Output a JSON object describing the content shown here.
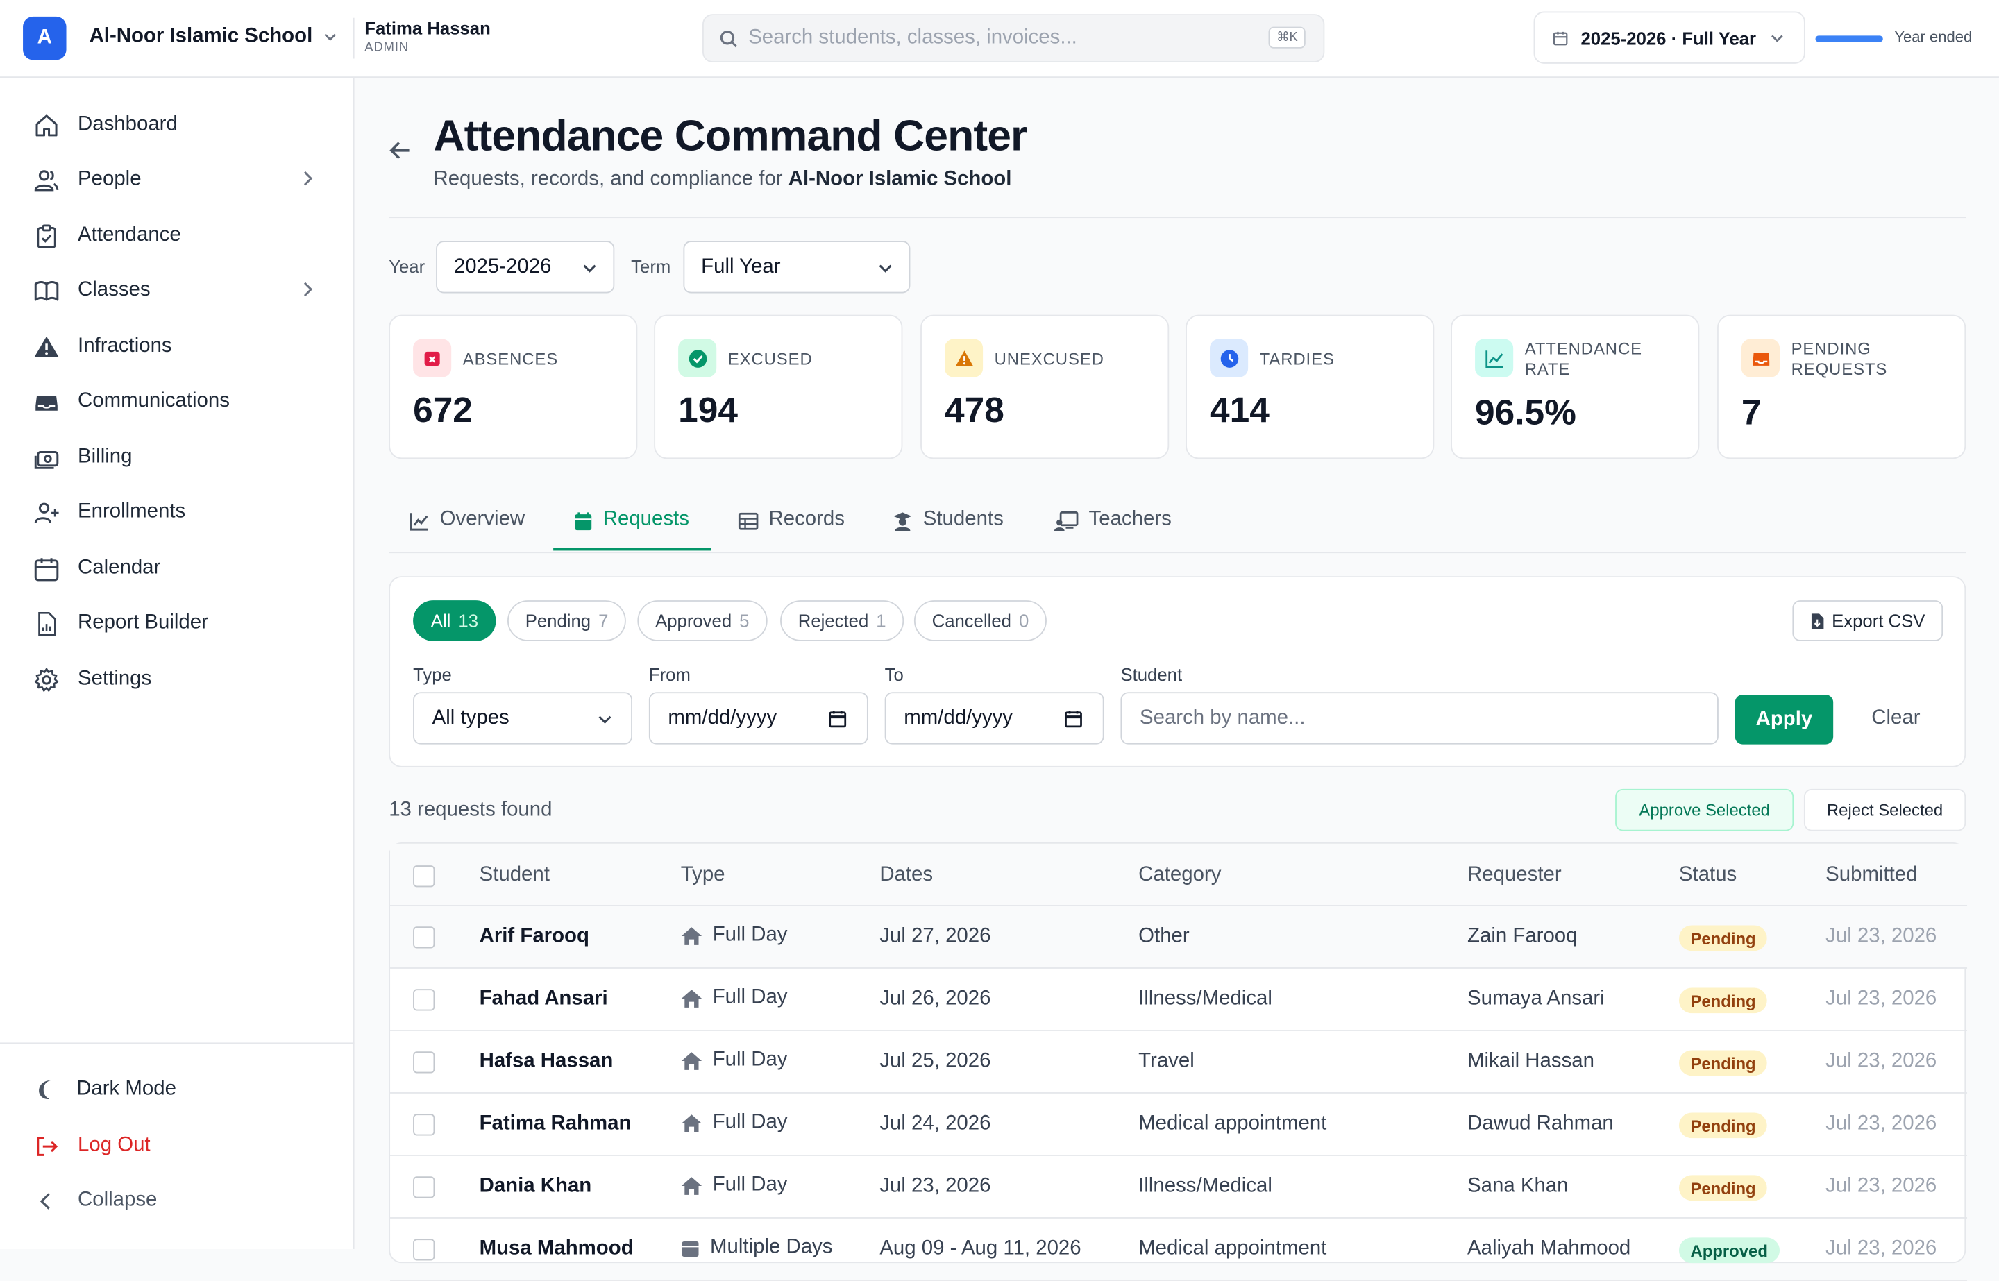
{
  "app": {
    "logo_letter": "A",
    "school_name": "Al-Noor Islamic School",
    "user_name": "Fatima Hassan",
    "user_role": "ADMIN",
    "search_placeholder": "Search students, classes, invoices...",
    "search_shortcut": "⌘K",
    "year_selector": "2025-2026 · Full Year",
    "year_status": "Year ended",
    "year_progress": 1.0
  },
  "sidebar": {
    "items": [
      {
        "label": "Dashboard",
        "icon": "home-icon"
      },
      {
        "label": "People",
        "icon": "users-icon",
        "has_children": true
      },
      {
        "label": "Attendance",
        "icon": "clipboard-check-icon"
      },
      {
        "label": "Classes",
        "icon": "book-icon",
        "has_children": true
      },
      {
        "label": "Infractions",
        "icon": "warning-icon"
      },
      {
        "label": "Communications",
        "icon": "inbox-icon"
      },
      {
        "label": "Billing",
        "icon": "cash-icon"
      },
      {
        "label": "Enrollments",
        "icon": "user-plus-icon"
      },
      {
        "label": "Calendar",
        "icon": "calendar-icon"
      },
      {
        "label": "Report Builder",
        "icon": "report-icon"
      },
      {
        "label": "Settings",
        "icon": "gear-icon"
      }
    ],
    "footer": {
      "dark_mode": "Dark Mode",
      "logout": "Log Out",
      "collapse": "Collapse"
    }
  },
  "page": {
    "title": "Attendance Command Center",
    "subtitle_prefix": "Requests, records, and compliance for ",
    "subtitle_school": "Al-Noor Islamic School",
    "year_label": "Year",
    "year_value": "2025-2026",
    "term_label": "Term",
    "term_value": "Full Year"
  },
  "stats": [
    {
      "label": "ABSENCES",
      "value": "672",
      "color": "#e11d48",
      "bg": "#ffe4e6",
      "icon": "calendar-x-icon"
    },
    {
      "label": "EXCUSED",
      "value": "194",
      "color": "#059669",
      "bg": "#d1fae5",
      "icon": "check-circle-icon"
    },
    {
      "label": "UNEXCUSED",
      "value": "478",
      "color": "#d97706",
      "bg": "#fef3c7",
      "icon": "warning-icon"
    },
    {
      "label": "TARDIES",
      "value": "414",
      "color": "#2563eb",
      "bg": "#dbeafe",
      "icon": "clock-icon"
    },
    {
      "label_line1": "ATTENDANCE",
      "label_line2": "RATE",
      "value": "96.5%",
      "color": "#0d9488",
      "bg": "#ccfbf1",
      "icon": "chart-line-icon"
    },
    {
      "label_line1": "PENDING",
      "label_line2": "REQUESTS",
      "value": "7",
      "color": "#ea580c",
      "bg": "#ffedd5",
      "icon": "inbox-icon"
    }
  ],
  "tabs": [
    {
      "label": "Overview",
      "icon": "chart-line-icon"
    },
    {
      "label": "Requests",
      "icon": "calendar-icon",
      "active": true
    },
    {
      "label": "Records",
      "icon": "table-icon"
    },
    {
      "label": "Students",
      "icon": "graduate-icon"
    },
    {
      "label": "Teachers",
      "icon": "teacher-icon"
    }
  ],
  "filters": {
    "status_pills": [
      {
        "label": "All",
        "count": "13",
        "active": true
      },
      {
        "label": "Pending",
        "count": "7"
      },
      {
        "label": "Approved",
        "count": "5"
      },
      {
        "label": "Rejected",
        "count": "1"
      },
      {
        "label": "Cancelled",
        "count": "0"
      }
    ],
    "export_label": "Export CSV",
    "type_label": "Type",
    "type_value": "All types",
    "from_label": "From",
    "from_placeholder": "mm/dd/yyyy",
    "to_label": "To",
    "to_placeholder": "mm/dd/yyyy",
    "student_label": "Student",
    "student_placeholder": "Search by name...",
    "apply_label": "Apply",
    "clear_label": "Clear"
  },
  "results": {
    "found_text": "13 requests found",
    "approve_selected": "Approve Selected",
    "reject_selected": "Reject Selected"
  },
  "table": {
    "columns": [
      "Student",
      "Type",
      "Dates",
      "Category",
      "Requester",
      "Status",
      "Submitted"
    ],
    "rows": [
      {
        "student": "Arif Farooq",
        "type": "Full Day",
        "dates": "Jul 27, 2026",
        "category": "Other",
        "requester": "Zain Farooq",
        "status": "Pending",
        "submitted": "Jul 23, 2026"
      },
      {
        "student": "Fahad Ansari",
        "type": "Full Day",
        "dates": "Jul 26, 2026",
        "category": "Illness/Medical",
        "requester": "Sumaya Ansari",
        "status": "Pending",
        "submitted": "Jul 23, 2026"
      },
      {
        "student": "Hafsa Hassan",
        "type": "Full Day",
        "dates": "Jul 25, 2026",
        "category": "Travel",
        "requester": "Mikail Hassan",
        "status": "Pending",
        "submitted": "Jul 23, 2026"
      },
      {
        "student": "Fatima Rahman",
        "type": "Full Day",
        "dates": "Jul 24, 2026",
        "category": "Medical appointment",
        "requester": "Dawud Rahman",
        "status": "Pending",
        "submitted": "Jul 23, 2026"
      },
      {
        "student": "Dania Khan",
        "type": "Full Day",
        "dates": "Jul 23, 2026",
        "category": "Illness/Medical",
        "requester": "Sana Khan",
        "status": "Pending",
        "submitted": "Jul 23, 2026"
      },
      {
        "student": "Musa Mahmood",
        "type": "Multiple Days",
        "dates": "Aug 09 - Aug 11, 2026",
        "category": "Medical appointment",
        "requester": "Aaliyah Mahmood",
        "status": "Approved",
        "submitted": "Jul 23, 2026"
      }
    ]
  }
}
